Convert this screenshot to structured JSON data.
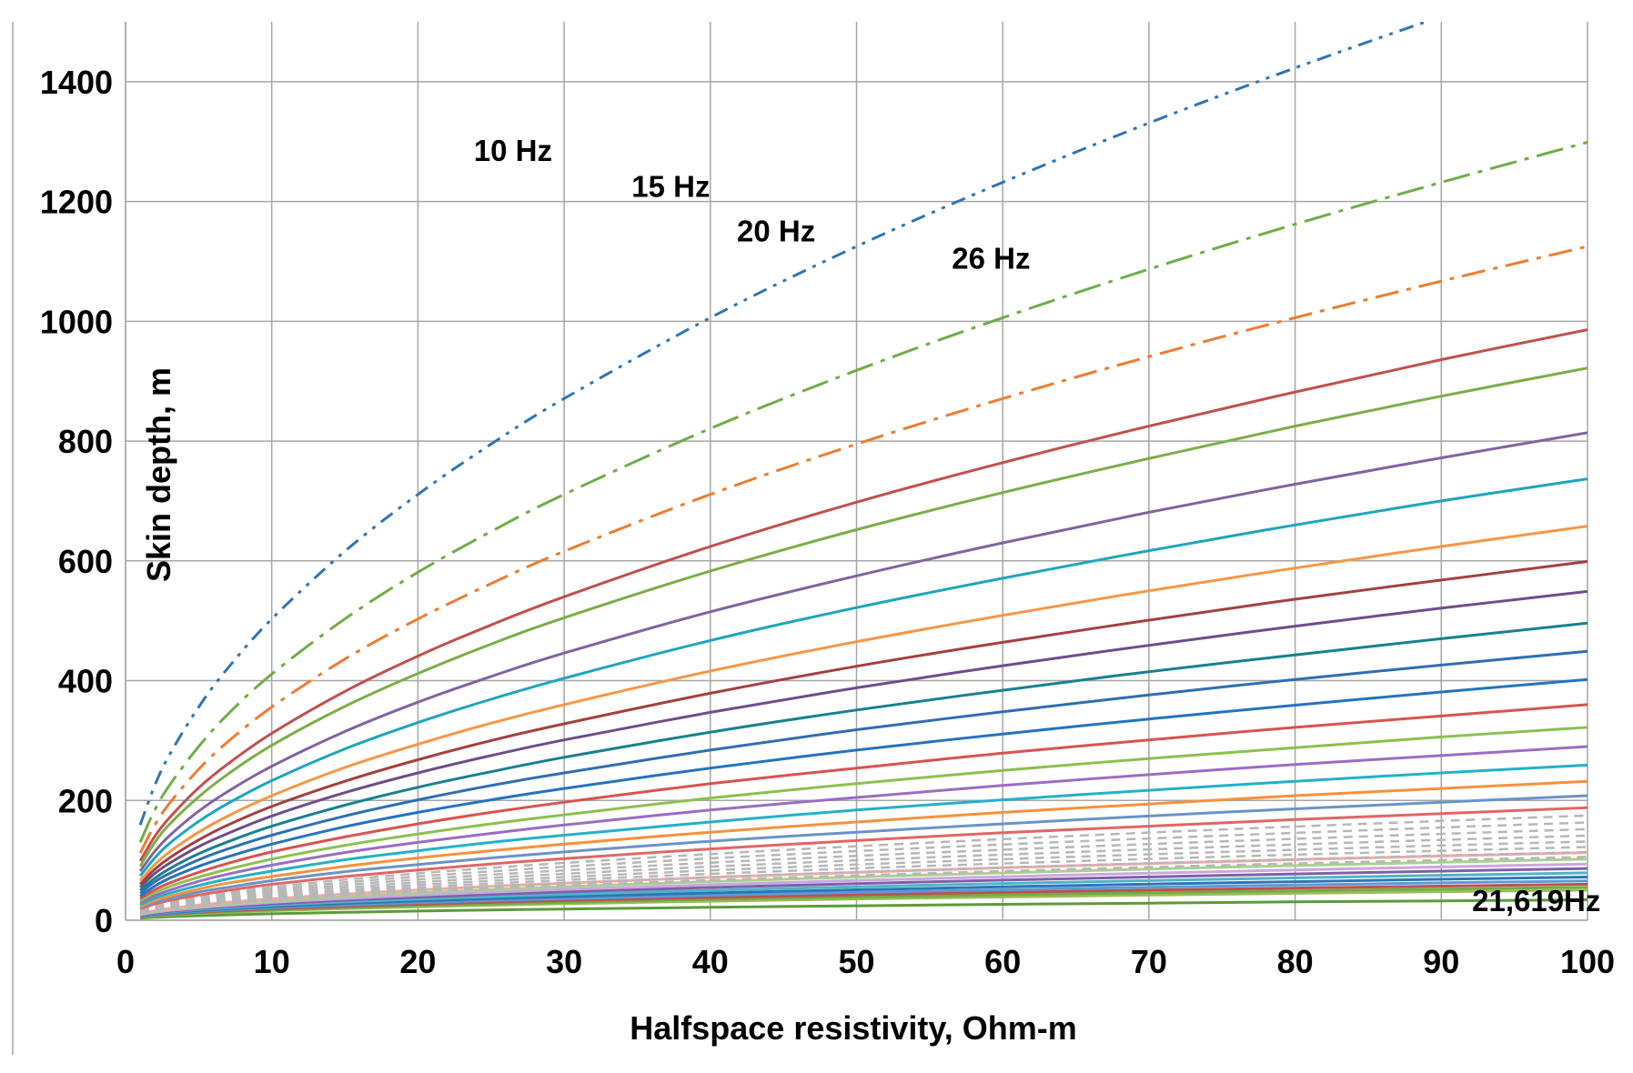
{
  "chart_data": {
    "type": "line",
    "title": "",
    "xlabel": "Halfspace resistivity, Ohm-m",
    "ylabel": "Skin depth, m",
    "xlim": [
      0,
      100
    ],
    "ylim": [
      0,
      1500
    ],
    "grid": true,
    "legend": "none",
    "x_ticks": [
      "0",
      "10",
      "20",
      "30",
      "40",
      "50",
      "60",
      "70",
      "80",
      "90",
      "100"
    ],
    "y_ticks": [
      "0",
      "200",
      "400",
      "600",
      "800",
      "1000",
      "1200",
      "1400"
    ],
    "formula": "skin depth = 503 * sqrt(resistivity / frequency)",
    "x": [
      1,
      2,
      3,
      5,
      7,
      10,
      15,
      20,
      25,
      30,
      40,
      50,
      60,
      70,
      80,
      90,
      100
    ],
    "series": [
      {
        "name": "10 Hz",
        "frequency_hz": 10,
        "values": [
          159,
          225,
          276,
          356,
          421,
          503,
          616,
          711,
          795,
          871,
          1006,
          1125,
          1232,
          1331,
          1423,
          1509,
          1591
        ],
        "color": "#2e75b6",
        "dash": "dashdotdot"
      },
      {
        "name": "15 Hz",
        "frequency_hz": 15,
        "values": [
          130,
          184,
          225,
          290,
          344,
          411,
          503,
          581,
          649,
          711,
          821,
          918,
          1006,
          1087,
          1162,
          1232,
          1299
        ],
        "color": "#70ad47",
        "dash": "longdashdot"
      },
      {
        "name": "20 Hz",
        "frequency_hz": 20,
        "values": [
          112,
          159,
          195,
          252,
          298,
          356,
          436,
          503,
          562,
          616,
          711,
          795,
          871,
          941,
          1006,
          1067,
          1125
        ],
        "color": "#ed7d31",
        "dash": "dashdot"
      },
      {
        "name": "26 Hz",
        "frequency_hz": 26,
        "values": [
          99,
          140,
          171,
          221,
          261,
          312,
          382,
          441,
          493,
          540,
          624,
          698,
          764,
          825,
          882,
          936,
          986
        ],
        "color": "#c0504d",
        "dash": "solid"
      },
      {
        "name": "",
        "values": [
          90,
          130,
          160,
          206,
          244,
          292,
          357,
          412,
          461,
          505,
          583,
          652,
          714,
          771,
          825,
          875,
          922
        ],
        "color": "#7cae48",
        "dash": "solid"
      },
      {
        "name": "",
        "values": [
          82,
          115,
          141,
          182,
          215,
          257,
          315,
          364,
          407,
          446,
          515,
          575,
          630,
          681,
          728,
          772,
          814
        ],
        "color": "#8064a2",
        "dash": "solid"
      },
      {
        "name": "",
        "values": [
          74,
          104,
          128,
          165,
          195,
          233,
          286,
          330,
          369,
          404,
          467,
          522,
          571,
          617,
          660,
          700,
          737
        ],
        "color": "#1ea5bd",
        "dash": "solid"
      },
      {
        "name": "",
        "values": [
          66,
          93,
          114,
          147,
          174,
          208,
          255,
          294,
          329,
          360,
          416,
          465,
          509,
          550,
          588,
          624,
          658
        ],
        "color": "#f79646",
        "dash": "solid"
      },
      {
        "name": "",
        "values": [
          60,
          85,
          104,
          134,
          159,
          190,
          232,
          268,
          300,
          328,
          379,
          424,
          464,
          501,
          536,
          568,
          599
        ],
        "color": "#a63f3f",
        "dash": "solid"
      },
      {
        "name": "",
        "values": [
          55,
          78,
          95,
          123,
          145,
          174,
          213,
          246,
          275,
          301,
          347,
          388,
          425,
          459,
          491,
          521,
          549
        ],
        "color": "#6d4e8c",
        "dash": "solid"
      },
      {
        "name": "",
        "values": [
          50,
          70,
          86,
          111,
          131,
          157,
          192,
          222,
          248,
          272,
          314,
          351,
          384,
          415,
          443,
          470,
          496
        ],
        "color": "#17818f",
        "dash": "solid"
      },
      {
        "name": "",
        "values": [
          45,
          64,
          78,
          101,
          119,
          142,
          174,
          201,
          225,
          246,
          284,
          318,
          348,
          376,
          402,
          426,
          449
        ],
        "color": "#2f6eb5",
        "dash": "solid"
      },
      {
        "name": "",
        "values": [
          40,
          57,
          70,
          90,
          106,
          127,
          156,
          180,
          201,
          220,
          254,
          284,
          311,
          336,
          359,
          381,
          402
        ],
        "color": "#2473c2",
        "dash": "solid"
      },
      {
        "name": "",
        "values": [
          36,
          51,
          62,
          80,
          95,
          114,
          139,
          161,
          180,
          197,
          228,
          254,
          279,
          301,
          322,
          341,
          360
        ],
        "color": "#d9534f",
        "dash": "solid"
      },
      {
        "name": "",
        "values": [
          32,
          46,
          56,
          72,
          85,
          102,
          125,
          144,
          161,
          176,
          204,
          228,
          250,
          270,
          288,
          306,
          322
        ],
        "color": "#8cc04f",
        "dash": "solid"
      },
      {
        "name": "",
        "values": [
          29,
          41,
          50,
          65,
          77,
          92,
          113,
          130,
          145,
          159,
          184,
          205,
          225,
          243,
          260,
          275,
          290
        ],
        "color": "#9b6cc6",
        "dash": "solid"
      },
      {
        "name": "",
        "values": [
          26,
          37,
          45,
          58,
          69,
          82,
          101,
          116,
          130,
          142,
          164,
          184,
          201,
          217,
          232,
          246,
          259
        ],
        "color": "#23b1c9",
        "dash": "solid"
      },
      {
        "name": "",
        "values": [
          23,
          33,
          40,
          52,
          62,
          73,
          90,
          104,
          116,
          127,
          147,
          164,
          180,
          194,
          208,
          220,
          232
        ],
        "color": "#f7913d",
        "dash": "solid"
      },
      {
        "name": "",
        "values": [
          21,
          30,
          36,
          47,
          55,
          66,
          81,
          93,
          104,
          114,
          132,
          147,
          161,
          174,
          186,
          197,
          208
        ],
        "color": "#6b93c9",
        "dash": "solid"
      },
      {
        "name": "",
        "values": [
          19,
          27,
          33,
          42,
          50,
          60,
          73,
          84,
          94,
          103,
          119,
          133,
          146,
          157,
          168,
          178,
          188
        ],
        "color": "#e06666",
        "dash": "solid"
      },
      {
        "name": "",
        "values": [
          17.5,
          24.7,
          30.3,
          39.1,
          46.3,
          55.3,
          67.7,
          78.2,
          87.4,
          95.7,
          110.6,
          123.6,
          135.4,
          146.3,
          156.4,
          165.8,
          174.8
        ],
        "color": "#b7b7b7",
        "dash": "dash"
      },
      {
        "name": "",
        "values": [
          16.3,
          23.1,
          28.3,
          36.5,
          43.2,
          51.6,
          63.2,
          73,
          81.6,
          89.4,
          103.2,
          115.4,
          126.4,
          136.5,
          145.9,
          154.8,
          163.2
        ],
        "color": "#b7b7b7",
        "dash": "dash"
      },
      {
        "name": "",
        "values": [
          15.2,
          21.5,
          26.3,
          34,
          40.2,
          48.1,
          58.9,
          68,
          76,
          83.2,
          96.1,
          107.5,
          117.7,
          127.2,
          135.9,
          144.2,
          152
        ],
        "color": "#b7b7b7",
        "dash": "dash"
      },
      {
        "name": "",
        "values": [
          14.1,
          20,
          24.5,
          31.6,
          37.4,
          44.7,
          54.8,
          63.2,
          70.7,
          77.5,
          89.4,
          100,
          109.5,
          118.3,
          126.5,
          134.2,
          141.4
        ],
        "color": "#b7b7b7",
        "dash": "dash"
      },
      {
        "name": "",
        "values": [
          13.2,
          18.6,
          22.8,
          29.4,
          34.8,
          41.6,
          50.9,
          58.8,
          65.8,
          72,
          83.2,
          93,
          101.9,
          110,
          117.6,
          124.8,
          131.5
        ],
        "color": "#b7b7b7",
        "dash": "dash"
      },
      {
        "name": "",
        "values": [
          12.2,
          17.3,
          21.2,
          27.4,
          32.4,
          38.7,
          47.4,
          54.7,
          61.2,
          67,
          77.4,
          86.5,
          94.8,
          102.4,
          109.4,
          116,
          122.3
        ],
        "color": "#b7b7b7",
        "dash": "dash"
      },
      {
        "name": "",
        "values": [
          11.4,
          16.1,
          19.7,
          25.5,
          30.1,
          36,
          44.1,
          50.9,
          56.9,
          62.3,
          72,
          80.5,
          88.1,
          95.2,
          101.8,
          107.9,
          113.8
        ],
        "color": "#b7b7b7",
        "dash": "dash"
      },
      {
        "name": "",
        "values": [
          10.6,
          15,
          18.3,
          23.7,
          28,
          33.5,
          41,
          47.3,
          52.9,
          58,
          66.9,
          74.8,
          82,
          88.6,
          94.7,
          100.4,
          105.8
        ],
        "color": "#b7b7b7",
        "dash": "dash"
      },
      {
        "name": "",
        "values": [
          11.3,
          16,
          19.6,
          25.3,
          29.9,
          35.7,
          43.8,
          50.5,
          56.5,
          61.9,
          71.5,
          79.9,
          87.6,
          94.6,
          101.1,
          107.2,
          113
        ],
        "color": "#f4a6a6",
        "dash": "solid"
      },
      {
        "name": "",
        "values": [
          10.2,
          14.4,
          17.7,
          22.8,
          27,
          32.3,
          39.5,
          45.6,
          51,
          55.9,
          64.5,
          72.1,
          79,
          85.4,
          91.2,
          96.8,
          102
        ],
        "color": "#a9d18e",
        "dash": "solid"
      },
      {
        "name": "",
        "values": [
          9.4,
          13.3,
          16.2,
          21,
          24.8,
          29.7,
          36.3,
          41.9,
          46.9,
          51.4,
          59.3,
          66.3,
          72.6,
          78.5,
          83.9,
          89,
          93.8
        ],
        "color": "#c9a7e0",
        "dash": "solid"
      },
      {
        "name": "",
        "values": [
          8.6,
          12.2,
          15,
          19.3,
          22.9,
          27.3,
          33.5,
          38.6,
          43.2,
          47.3,
          54.7,
          61.1,
          66.9,
          72.3,
          77.3,
          82,
          86.4
        ],
        "color": "#7f5fa8",
        "dash": "solid"
      },
      {
        "name": "",
        "values": [
          7.9,
          11.2,
          13.7,
          17.7,
          20.9,
          25,
          30.6,
          35.4,
          39.5,
          43.3,
          50,
          55.9,
          61.3,
          66.2,
          70.7,
          75,
          79.1
        ],
        "color": "#4fb3c8",
        "dash": "solid"
      },
      {
        "name": "",
        "values": [
          7.2,
          10.2,
          12.5,
          16.1,
          19.1,
          22.8,
          27.9,
          32.2,
          36,
          39.5,
          45.6,
          50.9,
          55.8,
          60.3,
          64.4,
          68.4,
          72.1
        ],
        "color": "#2e75b6",
        "dash": "solid"
      },
      {
        "name": "",
        "values": [
          6.6,
          9.3,
          11.4,
          14.7,
          17.4,
          20.8,
          25.5,
          29.4,
          32.9,
          36,
          41.6,
          46.5,
          50.9,
          55,
          58.8,
          62.4,
          65.8
        ],
        "color": "#5b9bd5",
        "dash": "solid"
      },
      {
        "name": "",
        "values": [
          6,
          8.5,
          10.4,
          13.4,
          15.9,
          19,
          23.3,
          26.9,
          30.1,
          32.9,
          38,
          42.5,
          46.6,
          50.3,
          53.8,
          57,
          60.1
        ],
        "color": "#c0504d",
        "dash": "solid"
      },
      {
        "name": "",
        "values": [
          5.5,
          7.8,
          9.5,
          12.3,
          14.5,
          17.4,
          21.3,
          24.6,
          27.5,
          30.1,
          34.8,
          38.9,
          42.6,
          46,
          49.1,
          52.1,
          54.9
        ],
        "color": "#70ad47",
        "dash": "solid"
      },
      {
        "name": "",
        "values": [
          5,
          7.1,
          8.7,
          11.2,
          13.3,
          15.9,
          19.4,
          22.5,
          25.1,
          27.5,
          31.8,
          35.5,
          38.9,
          42,
          44.9,
          47.6,
          50.2
        ],
        "color": "#9bbb59",
        "dash": "solid"
      },
      {
        "name": "21,619Hz",
        "frequency_hz": 21619,
        "values": [
          3.4,
          4.8,
          5.9,
          7.6,
          9,
          10.8,
          13.2,
          15.3,
          17.1,
          18.7,
          21.6,
          24.2,
          26.5,
          28.6,
          30.6,
          32.4,
          34.2
        ],
        "color": "#5b9b3a",
        "dash": "solid"
      }
    ],
    "annotations": [
      {
        "text": "10 Hz",
        "x": 26.5,
        "y": 1268
      },
      {
        "text": "15 Hz",
        "x": 37.3,
        "y": 1208
      },
      {
        "text": "20 Hz",
        "x": 44.5,
        "y": 1133
      },
      {
        "text": "26 Hz",
        "x": 59.2,
        "y": 1088
      },
      {
        "text": "21,619Hz",
        "x": 96.5,
        "y": 15
      }
    ]
  }
}
